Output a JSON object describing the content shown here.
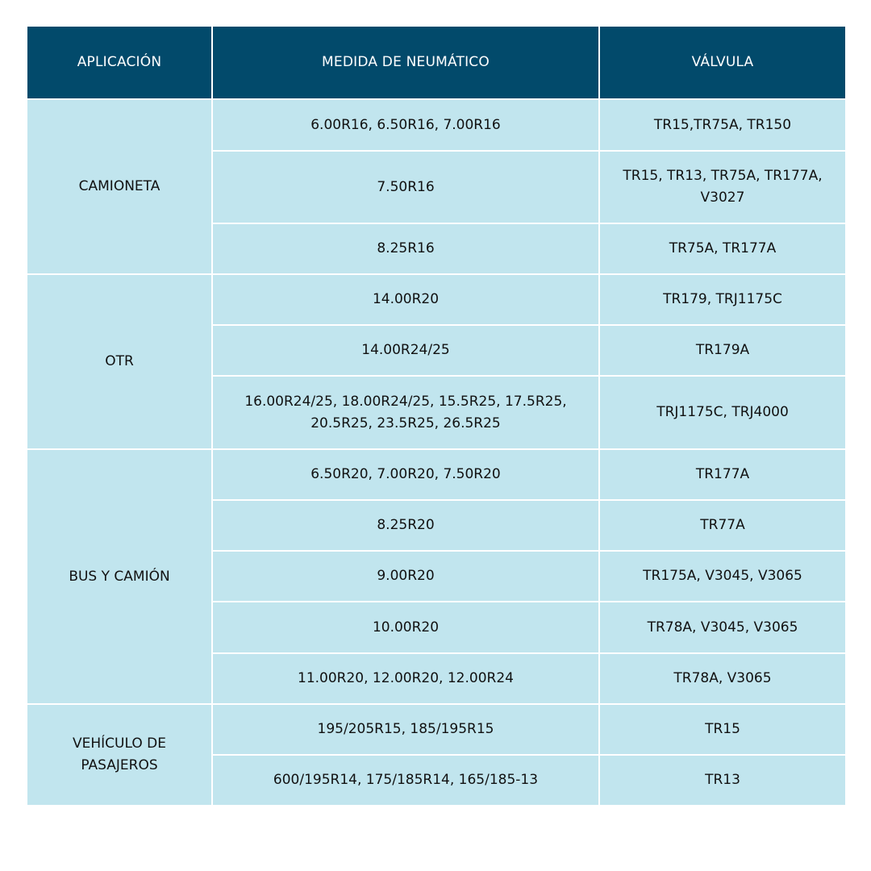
{
  "header": {
    "application": "APLICACIÓN",
    "tire_size": "MEDIDA DE NEUMÁTICO",
    "valve": "VÁLVULA"
  },
  "colors": {
    "header_bg": "#024a6b",
    "cell_bg": "#c1e5ee",
    "border": "#ffffff"
  },
  "groups": [
    {
      "application": "CAMIONETA",
      "rows": [
        {
          "size": "6.00R16, 6.50R16, 7.00R16",
          "valve": "TR15,TR75A, TR150"
        },
        {
          "size": "7.50R16",
          "valve": "TR15, TR13, TR75A, TR177A, V3027"
        },
        {
          "size": "8.25R16",
          "valve": "TR75A, TR177A"
        }
      ]
    },
    {
      "application": "OTR",
      "rows": [
        {
          "size": "14.00R20",
          "valve": "TR179, TRJ1175C"
        },
        {
          "size": "14.00R24/25",
          "valve": "TR179A"
        },
        {
          "size": "16.00R24/25, 18.00R24/25, 15.5R25, 17.5R25, 20.5R25,  23.5R25, 26.5R25",
          "valve": "TRJ1175C, TRJ4000"
        }
      ]
    },
    {
      "application": "BUS Y CAMIÓN",
      "rows": [
        {
          "size": "6.50R20, 7.00R20, 7.50R20",
          "valve": "TR177A"
        },
        {
          "size": "8.25R20",
          "valve": "TR77A"
        },
        {
          "size": "9.00R20",
          "valve": "TR175A, V3045, V3065"
        },
        {
          "size": "10.00R20",
          "valve": "TR78A, V3045, V3065"
        },
        {
          "size": "11.00R20, 12.00R20, 12.00R24",
          "valve": "TR78A, V3065"
        }
      ]
    },
    {
      "application": "VEHÍCULO DE PASAJEROS",
      "rows": [
        {
          "size": "195/205R15, 185/195R15",
          "valve": "TR15"
        },
        {
          "size": "600/195R14, 175/185R14, 165/185-13",
          "valve": "TR13"
        }
      ]
    }
  ]
}
